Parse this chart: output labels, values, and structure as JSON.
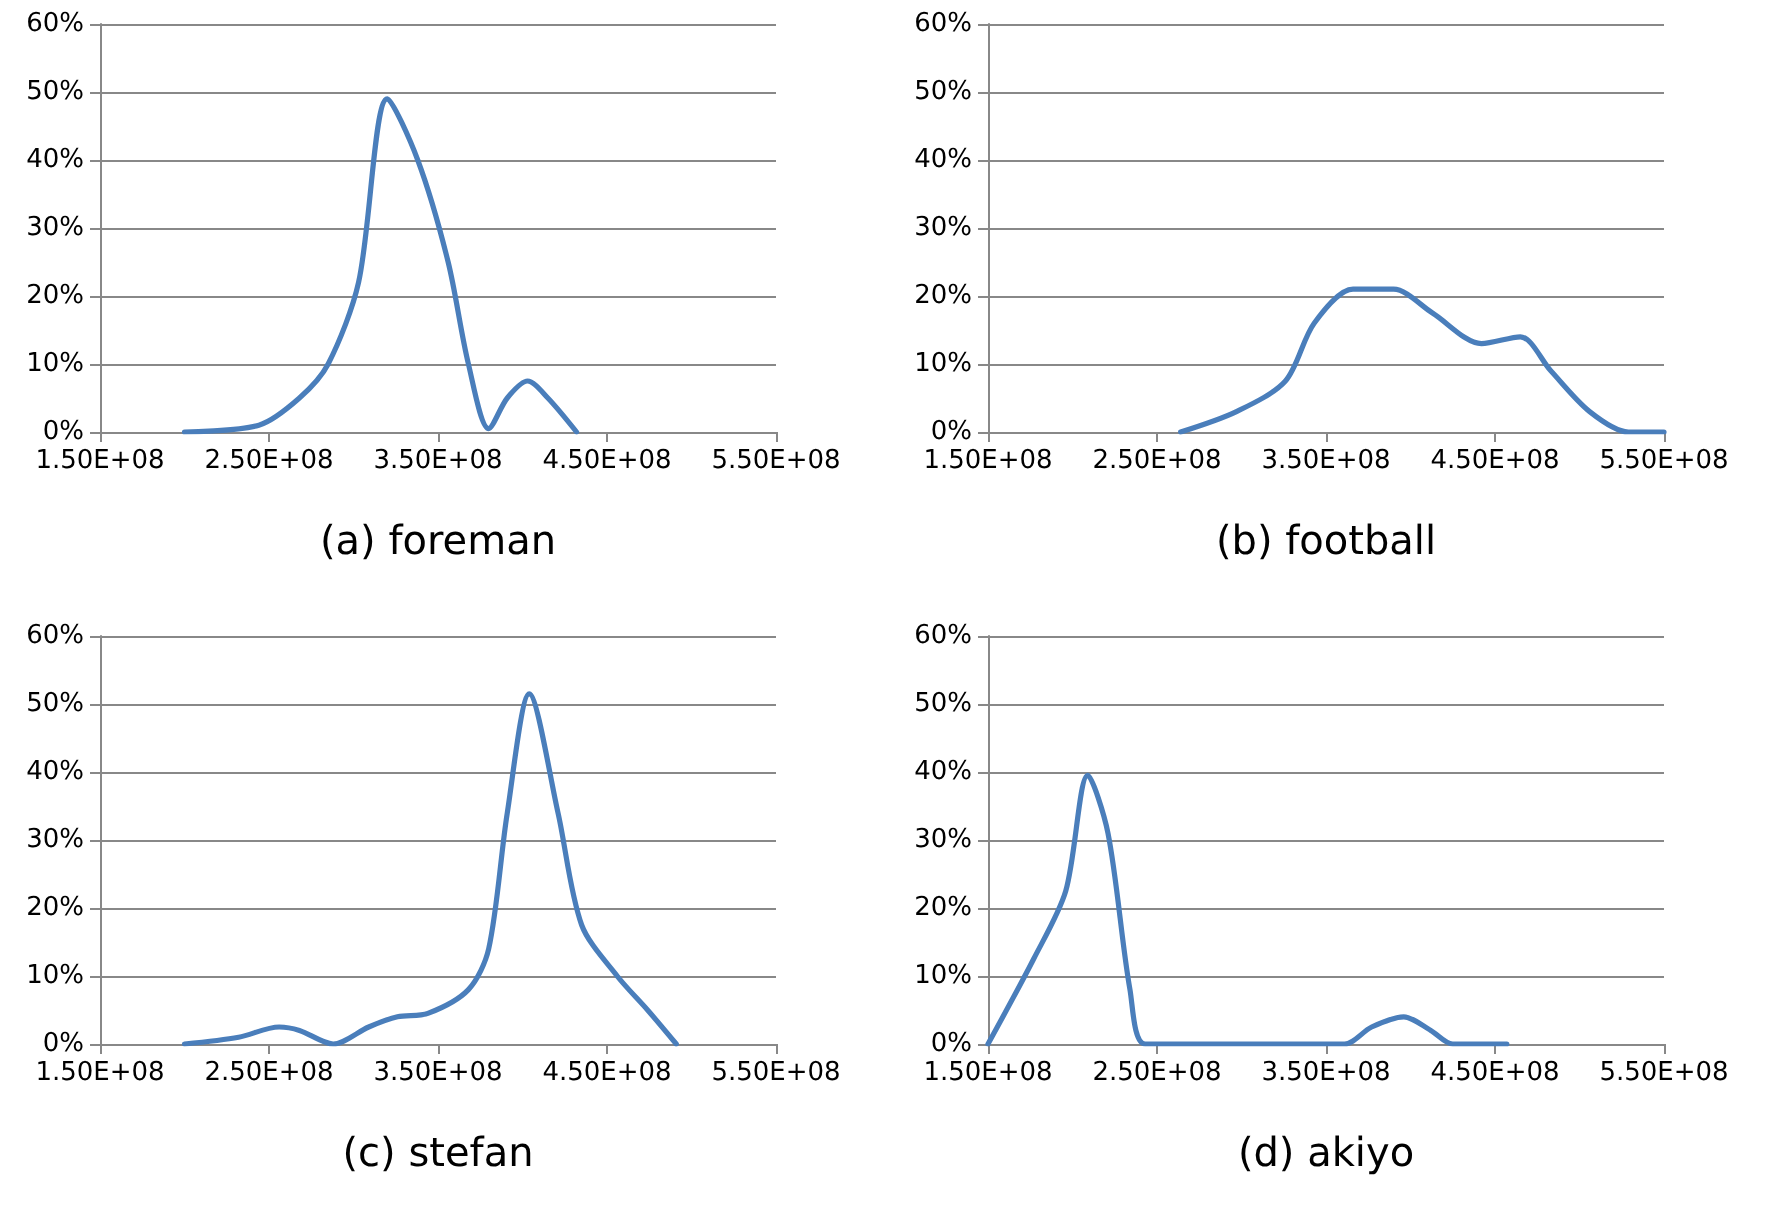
{
  "chart_data": [
    {
      "type": "line",
      "xlabel": "(a) foreman",
      "x": [
        200000000,
        244000000,
        268000000,
        285000000,
        303000000,
        320000000,
        338000000,
        356000000,
        368000000,
        380000000,
        391000000,
        403000000,
        415000000,
        432000000
      ],
      "series": [
        {
          "color": "#4a7ebb",
          "values": [
            0,
            1,
            5,
            10,
            22,
            49,
            40,
            25,
            10,
            0.5,
            5,
            7.5,
            5,
            0
          ]
        }
      ],
      "xlim": [
        150000000,
        550000000
      ],
      "xticks": [
        {
          "value": 150000000,
          "label": "1.50E+08"
        },
        {
          "value": 250000000,
          "label": "2.50E+08"
        },
        {
          "value": 350000000,
          "label": "3.50E+08"
        },
        {
          "value": 450000000,
          "label": "4.50E+08"
        },
        {
          "value": 550000000,
          "label": "5.50E+08"
        }
      ],
      "ylim": [
        0,
        60
      ],
      "yticks": [
        {
          "value": 0,
          "label": "0%"
        },
        {
          "value": 10,
          "label": "10%"
        },
        {
          "value": 20,
          "label": "20%"
        },
        {
          "value": 30,
          "label": "30%"
        },
        {
          "value": 40,
          "label": "40%"
        },
        {
          "value": 50,
          "label": "50%"
        },
        {
          "value": 60,
          "label": "60%"
        }
      ],
      "grid": "y",
      "marker": "none",
      "line_style": "solid"
    },
    {
      "type": "line",
      "xlabel": "(b) football",
      "x": [
        264000000,
        297000000,
        326000000,
        343000000,
        366000000,
        390000000,
        413000000,
        442000000,
        465000000,
        483000000,
        506000000,
        529000000,
        550000000
      ],
      "series": [
        {
          "color": "#4a7ebb",
          "values": [
            0,
            3,
            7.5,
            16,
            21,
            21,
            17.5,
            13,
            14,
            9,
            3,
            0,
            0
          ]
        }
      ],
      "xlim": [
        150000000,
        550000000
      ],
      "xticks": [
        {
          "value": 150000000,
          "label": "1.50E+08"
        },
        {
          "value": 250000000,
          "label": "2.50E+08"
        },
        {
          "value": 350000000,
          "label": "3.50E+08"
        },
        {
          "value": 450000000,
          "label": "4.50E+08"
        },
        {
          "value": 550000000,
          "label": "5.50E+08"
        }
      ],
      "ylim": [
        0,
        60
      ],
      "yticks": [
        {
          "value": 0,
          "label": "0%"
        },
        {
          "value": 10,
          "label": "10%"
        },
        {
          "value": 20,
          "label": "20%"
        },
        {
          "value": 30,
          "label": "30%"
        },
        {
          "value": 40,
          "label": "40%"
        },
        {
          "value": 50,
          "label": "50%"
        },
        {
          "value": 60,
          "label": "60%"
        }
      ],
      "grid": "y",
      "marker": "none",
      "line_style": "solid"
    },
    {
      "type": "line",
      "xlabel": "(c) stefan",
      "x": [
        200000000,
        232000000,
        256000000,
        268000000,
        288000000,
        309000000,
        326000000,
        344000000,
        368000000,
        380000000,
        391000000,
        404000000,
        421000000,
        435000000,
        456000000,
        474000000,
        491000000
      ],
      "series": [
        {
          "color": "#4a7ebb",
          "values": [
            0,
            1,
            2.5,
            2,
            0,
            2.5,
            4,
            4.5,
            8,
            14,
            34,
            51.5,
            34,
            17.5,
            10,
            5,
            0
          ]
        }
      ],
      "xlim": [
        150000000,
        550000000
      ],
      "xticks": [
        {
          "value": 150000000,
          "label": "1.50E+08"
        },
        {
          "value": 250000000,
          "label": "2.50E+08"
        },
        {
          "value": 350000000,
          "label": "3.50E+08"
        },
        {
          "value": 450000000,
          "label": "4.50E+08"
        },
        {
          "value": 550000000,
          "label": "5.50E+08"
        }
      ],
      "ylim": [
        0,
        60
      ],
      "yticks": [
        {
          "value": 0,
          "label": "0%"
        },
        {
          "value": 10,
          "label": "10%"
        },
        {
          "value": 20,
          "label": "20%"
        },
        {
          "value": 30,
          "label": "30%"
        },
        {
          "value": 40,
          "label": "40%"
        },
        {
          "value": 50,
          "label": "50%"
        },
        {
          "value": 60,
          "label": "60%"
        }
      ],
      "grid": "y",
      "marker": "none",
      "line_style": "solid"
    },
    {
      "type": "line",
      "xlabel": "(d) akiyo",
      "x": [
        150000000,
        177000000,
        196000000,
        209000000,
        221000000,
        234000000,
        243000000,
        285000000,
        361000000,
        377000000,
        396000000,
        412000000,
        425000000,
        457000000
      ],
      "series": [
        {
          "color": "#4a7ebb",
          "values": [
            0,
            12.5,
            22.5,
            39.5,
            31,
            8,
            0,
            0,
            0,
            2.5,
            4,
            2,
            0,
            0
          ]
        }
      ],
      "xlim": [
        150000000,
        550000000
      ],
      "xticks": [
        {
          "value": 150000000,
          "label": "1.50E+08"
        },
        {
          "value": 250000000,
          "label": "2.50E+08"
        },
        {
          "value": 350000000,
          "label": "3.50E+08"
        },
        {
          "value": 450000000,
          "label": "4.50E+08"
        },
        {
          "value": 550000000,
          "label": "5.50E+08"
        }
      ],
      "ylim": [
        0,
        60
      ],
      "yticks": [
        {
          "value": 0,
          "label": "0%"
        },
        {
          "value": 10,
          "label": "10%"
        },
        {
          "value": 20,
          "label": "20%"
        },
        {
          "value": 30,
          "label": "30%"
        },
        {
          "value": 40,
          "label": "40%"
        },
        {
          "value": 50,
          "label": "50%"
        },
        {
          "value": 60,
          "label": "60%"
        }
      ],
      "grid": "y",
      "marker": "none",
      "line_style": "solid"
    }
  ]
}
